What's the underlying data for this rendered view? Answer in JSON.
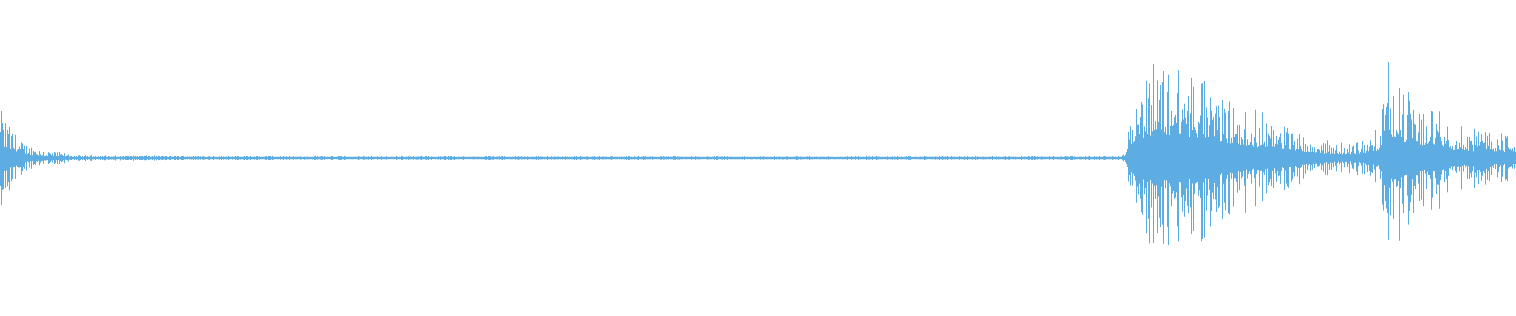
{
  "chart_data": {
    "type": "area",
    "title": "",
    "xlabel": "",
    "ylabel": "",
    "ylim": [
      -1,
      1
    ],
    "grid": false,
    "color": "#5dade2",
    "background": "#ffffff",
    "envelope": {
      "t": [
        0.0,
        0.005,
        0.015,
        0.03,
        0.05,
        0.2,
        0.5,
        0.74,
        0.742,
        0.745,
        0.75,
        0.76,
        0.77,
        0.78,
        0.79,
        0.8,
        0.82,
        0.84,
        0.855,
        0.87,
        0.88,
        0.89,
        0.9,
        0.91,
        0.915,
        0.92,
        0.93,
        0.94,
        0.95,
        0.96,
        0.98,
        1.0
      ],
      "amplitude": [
        0.3,
        0.22,
        0.1,
        0.05,
        0.02,
        0.012,
        0.01,
        0.012,
        0.05,
        0.3,
        0.5,
        0.62,
        0.6,
        0.58,
        0.55,
        0.45,
        0.32,
        0.25,
        0.18,
        0.12,
        0.1,
        0.09,
        0.12,
        0.2,
        0.6,
        0.55,
        0.38,
        0.3,
        0.32,
        0.2,
        0.18,
        0.15
      ]
    }
  }
}
